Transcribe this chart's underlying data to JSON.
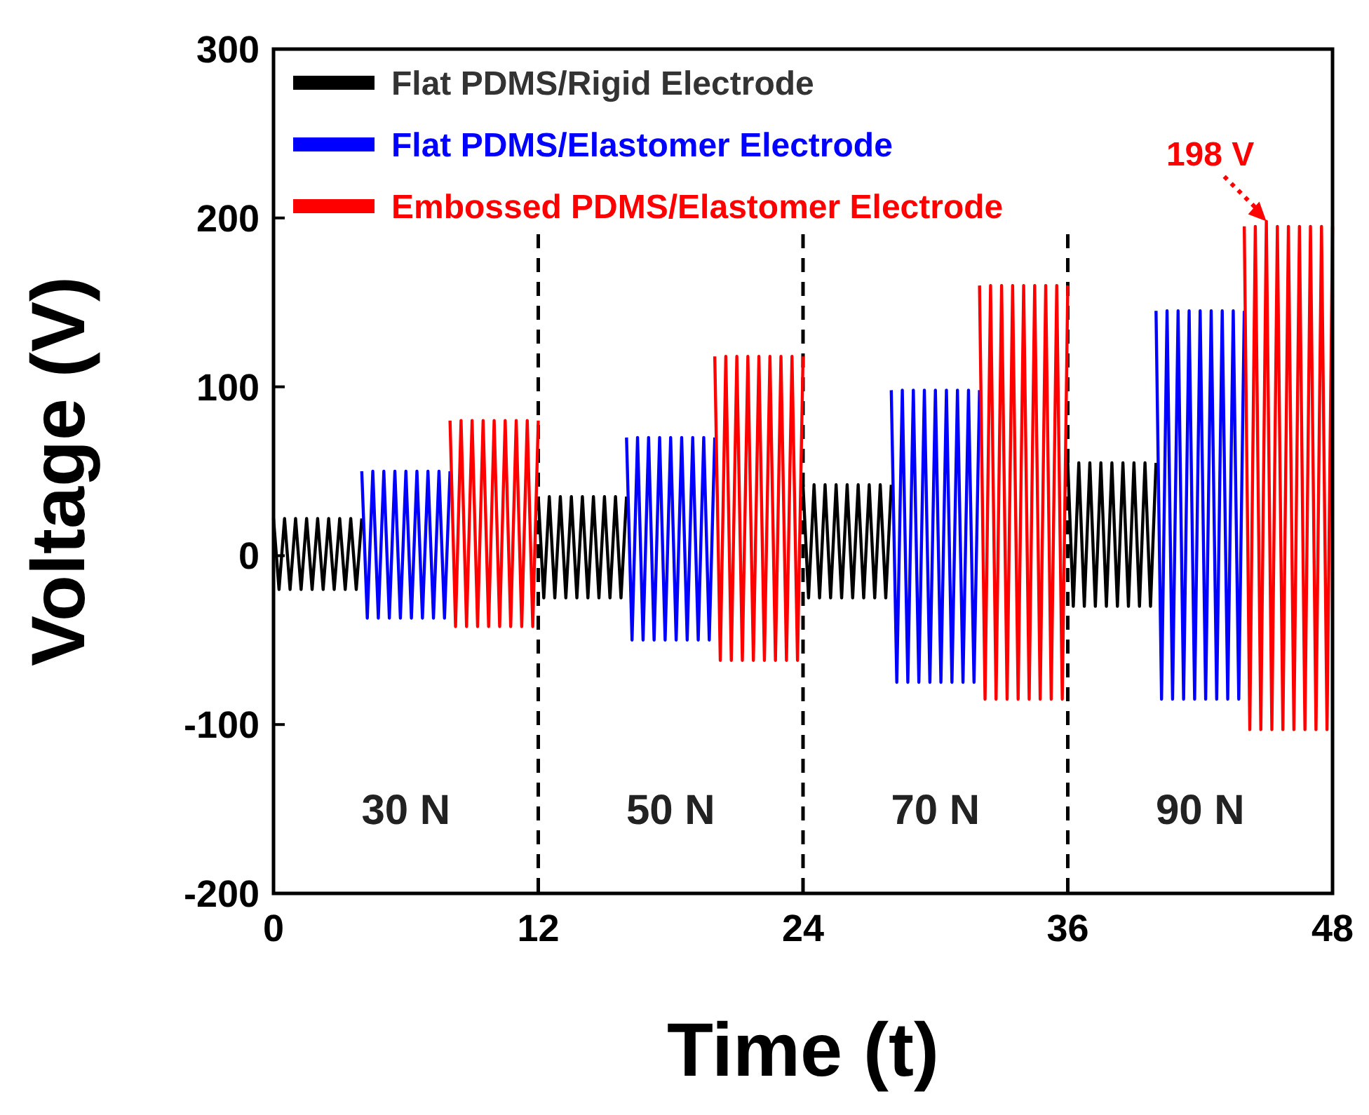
{
  "chart_data": {
    "type": "line",
    "xlabel": "Time (t)",
    "ylabel": "Voltage (V)",
    "xlim": [
      0,
      48
    ],
    "ylim": [
      -200,
      300
    ],
    "xticks": [
      0,
      12,
      24,
      36,
      48
    ],
    "yticks": [
      -200,
      -100,
      0,
      100,
      200,
      300
    ],
    "grid": false,
    "legend": "top left",
    "series": [
      {
        "name": "Flat PDMS/Rigid Electrode",
        "color": "#000000",
        "x": [
          0,
          0.25,
          0.5,
          0.75,
          1,
          1.25,
          1.5,
          1.75,
          2,
          2.25,
          2.5,
          2.75,
          3,
          3.25,
          3.5,
          3.75,
          4,
          8,
          12,
          12.25,
          12.5,
          12.75,
          13,
          13.25,
          13.5,
          13.75,
          14,
          14.25,
          14.5,
          14.75,
          15,
          15.25,
          15.5,
          15.75,
          16,
          20,
          24,
          24.25,
          24.5,
          24.75,
          25,
          25.25,
          25.5,
          25.75,
          26,
          26.25,
          26.5,
          26.75,
          27,
          27.25,
          27.5,
          27.75,
          28,
          32,
          36,
          36.25,
          36.5,
          36.75,
          37,
          37.25,
          37.5,
          37.75,
          38,
          38.25,
          38.5,
          38.75,
          39,
          39.25,
          39.5,
          39.75,
          40
        ],
        "values": [
          22,
          -20,
          22,
          -20,
          22,
          -20,
          22,
          -20,
          22,
          -20,
          22,
          -20,
          22,
          -20,
          22,
          -20,
          22,
          null,
          35,
          -25,
          35,
          -25,
          35,
          -25,
          35,
          -25,
          35,
          -25,
          35,
          -25,
          35,
          -25,
          35,
          -25,
          35,
          null,
          42,
          -25,
          42,
          -25,
          42,
          -25,
          42,
          -25,
          42,
          -25,
          42,
          -25,
          42,
          -25,
          42,
          -25,
          42,
          null,
          55,
          -30,
          55,
          -30,
          55,
          -30,
          55,
          -30,
          55,
          -30,
          55,
          -30,
          55,
          -30,
          55,
          -30,
          55
        ]
      },
      {
        "name": "Flat PDMS/Elastomer Electrode",
        "color": "#0000ff",
        "x": [
          4,
          4.25,
          4.5,
          4.75,
          5,
          5.25,
          5.5,
          5.75,
          6,
          6.25,
          6.5,
          6.75,
          7,
          7.25,
          7.5,
          7.75,
          8,
          12,
          16,
          16.25,
          16.5,
          16.75,
          17,
          17.25,
          17.5,
          17.75,
          18,
          18.25,
          18.5,
          18.75,
          19,
          19.25,
          19.5,
          19.75,
          20,
          24,
          28,
          28.25,
          28.5,
          28.75,
          29,
          29.25,
          29.5,
          29.75,
          30,
          30.25,
          30.5,
          30.75,
          31,
          31.25,
          31.5,
          31.75,
          32,
          36,
          40,
          40.25,
          40.5,
          40.75,
          41,
          41.25,
          41.5,
          41.75,
          42,
          42.25,
          42.5,
          42.75,
          43,
          43.25,
          43.5,
          43.75,
          44
        ],
        "values": [
          50,
          -37,
          50,
          -37,
          50,
          -37,
          50,
          -37,
          50,
          -37,
          50,
          -37,
          50,
          -37,
          50,
          -37,
          50,
          null,
          70,
          -50,
          70,
          -50,
          70,
          -50,
          70,
          -50,
          70,
          -50,
          70,
          -50,
          70,
          -50,
          70,
          -50,
          70,
          null,
          98,
          -75,
          98,
          -75,
          98,
          -75,
          98,
          -75,
          98,
          -75,
          98,
          -75,
          98,
          -75,
          98,
          -75,
          98,
          null,
          145,
          -85,
          145,
          -85,
          145,
          -85,
          145,
          -85,
          145,
          -85,
          145,
          -85,
          145,
          -85,
          145,
          -85,
          145
        ]
      },
      {
        "name": "Embossed PDMS/Elastomer Electrode",
        "color": "#ff0000",
        "x": [
          8,
          8.25,
          8.5,
          8.75,
          9,
          9.25,
          9.5,
          9.75,
          10,
          10.25,
          10.5,
          10.75,
          11,
          11.25,
          11.5,
          11.75,
          12,
          16,
          20,
          20.25,
          20.5,
          20.75,
          21,
          21.25,
          21.5,
          21.75,
          22,
          22.25,
          22.5,
          22.75,
          23,
          23.25,
          23.5,
          23.75,
          24,
          28,
          32,
          32.25,
          32.5,
          32.75,
          33,
          33.25,
          33.5,
          33.75,
          34,
          34.25,
          34.5,
          34.75,
          35,
          35.25,
          35.5,
          35.75,
          36,
          40,
          44,
          44.25,
          44.5,
          44.75,
          45,
          45.25,
          45.5,
          45.75,
          46,
          46.25,
          46.5,
          46.75,
          47,
          47.25,
          47.5,
          47.75,
          48
        ],
        "values": [
          80,
          -42,
          80,
          -42,
          80,
          -42,
          80,
          -42,
          80,
          -42,
          80,
          -42,
          80,
          -42,
          80,
          -42,
          80,
          null,
          118,
          -62,
          118,
          -62,
          118,
          -62,
          118,
          -62,
          118,
          -62,
          118,
          -62,
          118,
          -62,
          118,
          -62,
          118,
          null,
          160,
          -85,
          160,
          -85,
          160,
          -85,
          160,
          -85,
          160,
          -85,
          160,
          -85,
          160,
          -85,
          160,
          -85,
          160,
          null,
          195,
          -103,
          195,
          -103,
          198,
          -103,
          195,
          -103,
          195,
          -103,
          195,
          -103,
          195,
          -103,
          195,
          -103,
          195
        ]
      }
    ],
    "ref_lines": [
      {
        "axis": "x",
        "value": 12,
        "color": "#000000",
        "line_style": "dashed"
      },
      {
        "axis": "x",
        "value": 24,
        "color": "#000000",
        "line_style": "dashed"
      },
      {
        "axis": "x",
        "value": 36,
        "color": "#000000",
        "line_style": "dashed"
      }
    ],
    "annotations": [
      "30 N",
      "50 N",
      "70 N",
      "90 N",
      {
        "text": "198 V",
        "x": 45,
        "y": 198
      }
    ]
  }
}
